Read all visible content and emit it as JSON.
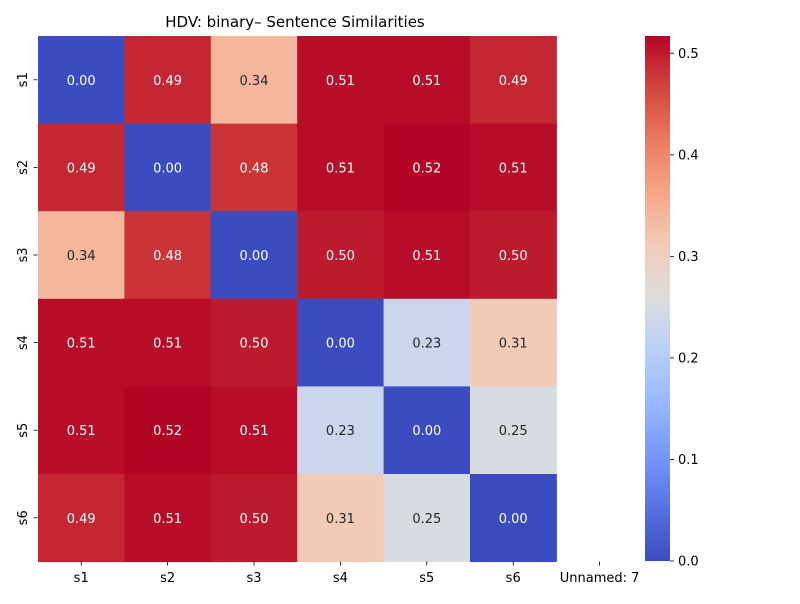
{
  "chart_data": {
    "type": "heatmap",
    "title": "HDV: binary– Sentence Similarities",
    "xlabel": "",
    "ylabel": "",
    "x_categories": [
      "s1",
      "s2",
      "s3",
      "s4",
      "s5",
      "s6",
      "Unnamed: 7"
    ],
    "y_categories": [
      "s1",
      "s2",
      "s3",
      "s4",
      "s5",
      "s6"
    ],
    "values": [
      [
        0.0,
        0.49,
        0.34,
        0.51,
        0.51,
        0.49,
        null
      ],
      [
        0.49,
        0.0,
        0.48,
        0.51,
        0.52,
        0.51,
        null
      ],
      [
        0.34,
        0.48,
        0.0,
        0.5,
        0.51,
        0.5,
        null
      ],
      [
        0.51,
        0.51,
        0.5,
        0.0,
        0.23,
        0.31,
        null
      ],
      [
        0.51,
        0.52,
        0.51,
        0.23,
        0.0,
        0.25,
        null
      ],
      [
        0.49,
        0.51,
        0.5,
        0.31,
        0.25,
        0.0,
        null
      ]
    ],
    "value_format": "0.00",
    "colorbar": {
      "colormap": "coolwarm",
      "min": 0.0,
      "max": 0.517,
      "ticks": [
        "0.0",
        "0.1",
        "0.2",
        "0.3",
        "0.4",
        "0.5"
      ],
      "tick_values": [
        0.0,
        0.1,
        0.2,
        0.3,
        0.4,
        0.5
      ],
      "position": "right"
    }
  }
}
